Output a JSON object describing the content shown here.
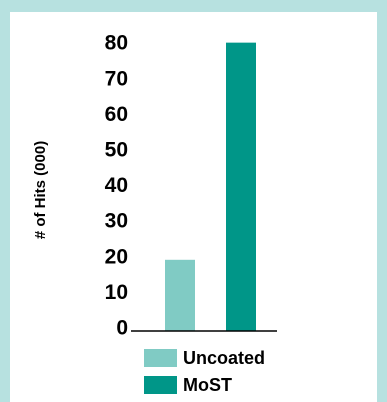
{
  "chart_data": {
    "type": "bar",
    "title": "",
    "xlabel": "",
    "ylabel": "# of Hits (000)",
    "categories": [
      "Uncoated",
      "MoST"
    ],
    "values": [
      20,
      81
    ],
    "colors": [
      "#80cbc4",
      "#009688"
    ],
    "ylim": [
      0,
      80
    ],
    "yticks": [
      0,
      10,
      20,
      30,
      40,
      50,
      60,
      70,
      80
    ],
    "grid": false,
    "legend_placement": "bottom",
    "legend": [
      {
        "label": "Uncoated",
        "color": "#80cbc4"
      },
      {
        "label": "MoST",
        "color": "#009688"
      }
    ],
    "background_color": "#b7e1e0",
    "panel_color": "#ffffff"
  }
}
